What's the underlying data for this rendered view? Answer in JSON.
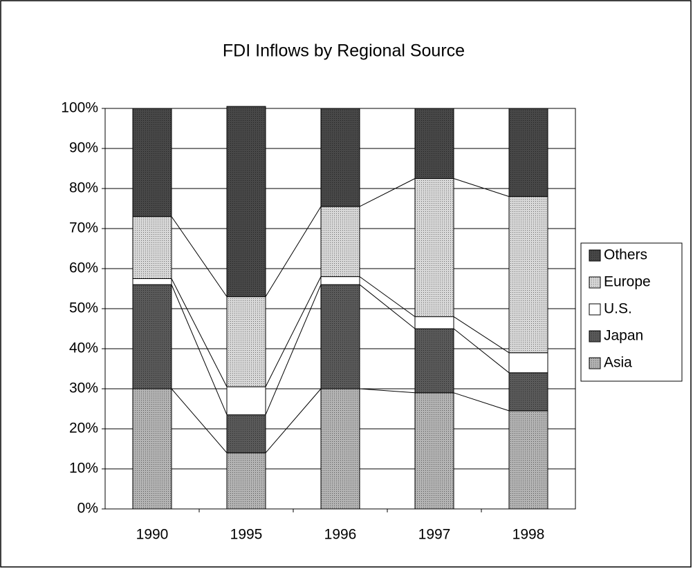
{
  "chart_data": {
    "type": "stacked_bar_100",
    "title": "FDI Inflows by Regional Source",
    "categories": [
      "1990",
      "1995",
      "1996",
      "1997",
      "1998"
    ],
    "series": [
      {
        "name": "Asia",
        "color": "#b4b4b4",
        "values": [
          30,
          14,
          30,
          29,
          24.5
        ]
      },
      {
        "name": "Japan",
        "color": "#5a5a5a",
        "values": [
          26,
          9.5,
          26,
          16,
          9.5
        ]
      },
      {
        "name": "U.S.",
        "color": "#ffffff",
        "values": [
          1.5,
          7,
          2,
          3,
          5
        ]
      },
      {
        "name": "Europe",
        "color": "#d8d8d8",
        "values": [
          15.5,
          22.5,
          17.5,
          34.5,
          39
        ]
      },
      {
        "name": "Others",
        "color": "#484848",
        "values": [
          27,
          47.5,
          24.5,
          17.5,
          22
        ]
      }
    ],
    "ylim": [
      0,
      100
    ],
    "yticks": [
      {
        "value": 0,
        "label": "0%"
      },
      {
        "value": 10,
        "label": "10%"
      },
      {
        "value": 20,
        "label": "20%"
      },
      {
        "value": 30,
        "label": "30%"
      },
      {
        "value": 40,
        "label": "40%"
      },
      {
        "value": 50,
        "label": "50%"
      },
      {
        "value": 60,
        "label": "60%"
      },
      {
        "value": 70,
        "label": "70%"
      },
      {
        "value": 80,
        "label": "80%"
      },
      {
        "value": 90,
        "label": "90%"
      },
      {
        "value": 100,
        "label": "100%"
      }
    ],
    "grid": true,
    "legend": "right",
    "series_lines": true
  }
}
